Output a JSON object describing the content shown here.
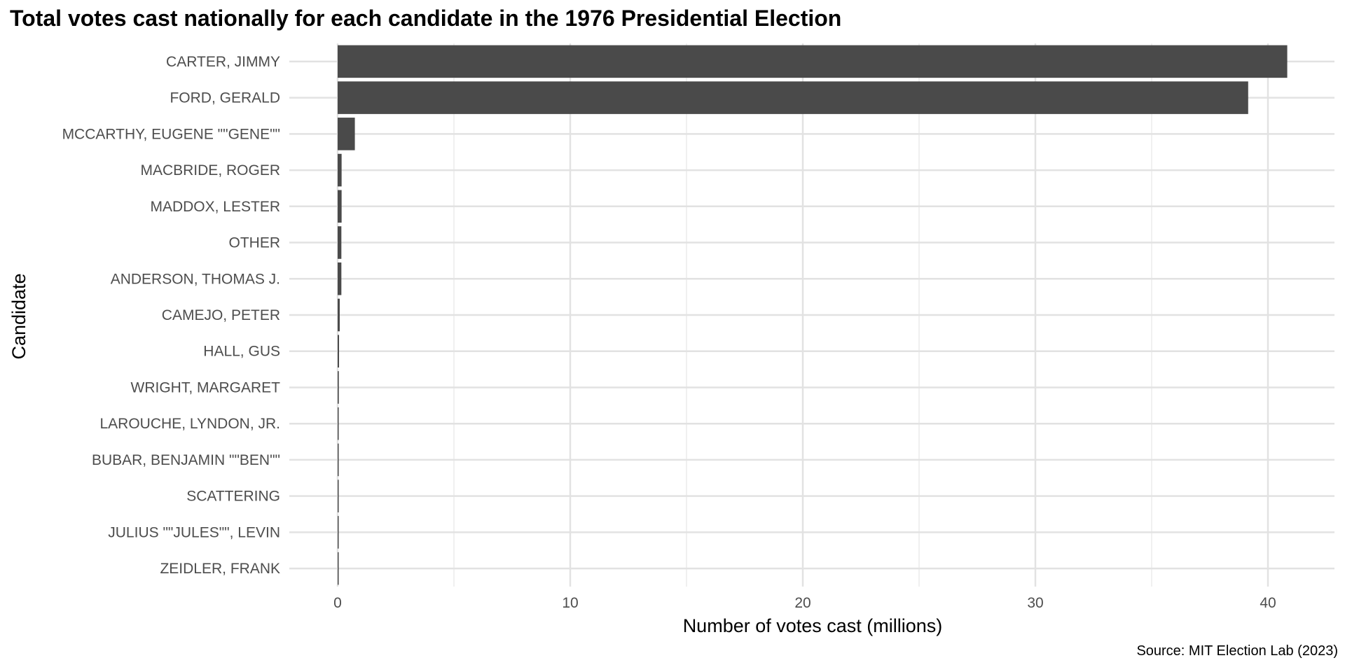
{
  "chart_data": {
    "type": "bar",
    "orientation": "horizontal",
    "title": "Total votes cast nationally for each candidate in the 1976 Presidential Election",
    "xlabel": "Number of votes cast (millions)",
    "ylabel": "Candidate",
    "caption": "Source: MIT Election Lab (2023)",
    "xlim": [
      -2,
      42.5
    ],
    "x_ticks": [
      0,
      10,
      20,
      30,
      40
    ],
    "grid": true,
    "bar_color": "#4a4a4a",
    "categories": [
      "CARTER, JIMMY",
      "FORD, GERALD",
      "MCCARTHY, EUGENE \"\"GENE\"\"",
      "MACBRIDE, ROGER",
      "MADDOX, LESTER",
      "OTHER",
      "ANDERSON, THOMAS J.",
      "CAMEJO, PETER",
      "HALL, GUS",
      "WRIGHT, MARGARET",
      "LAROUCHE, LYNDON, JR.",
      "BUBAR, BENJAMIN \"\"BEN\"\"",
      "SCATTERING",
      "JULIUS \"\"JULES\"\", LEVIN",
      "ZEIDLER, FRANK"
    ],
    "values": [
      40.83,
      39.15,
      0.74,
      0.17,
      0.17,
      0.16,
      0.16,
      0.09,
      0.06,
      0.05,
      0.04,
      0.015,
      0.01,
      0.009,
      0.008
    ]
  }
}
